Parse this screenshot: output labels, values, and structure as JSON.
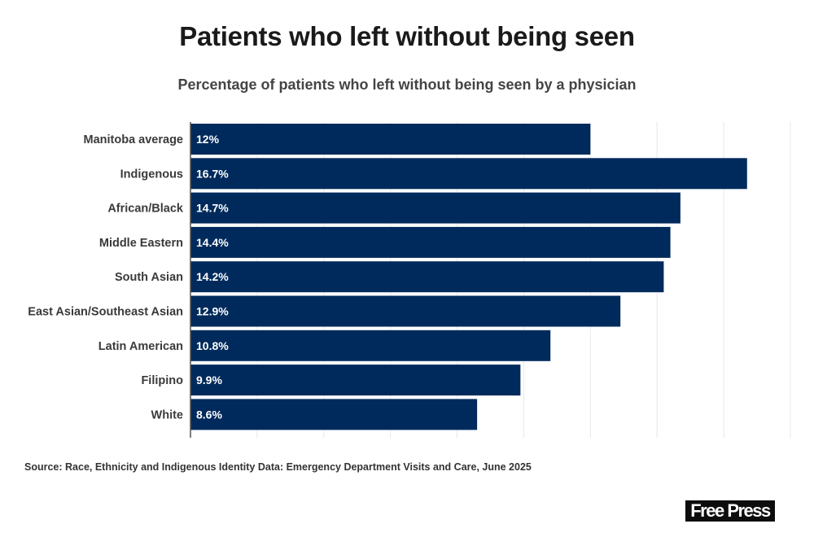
{
  "header": {
    "title": "Patients who left without being seen",
    "subtitle": "Percentage of patients who left without being seen by a physician"
  },
  "footer": {
    "source": "Source: Race, Ethnicity and Indigenous Identity Data: Emergency Department Visits and Care, June 2025",
    "logo_text": "Free Press"
  },
  "colors": {
    "bar": "#002a5c",
    "grid": "#e8e8ee",
    "axis": "#555555"
  },
  "chart_data": {
    "type": "bar",
    "orientation": "horizontal",
    "title": "Patients who left without being seen",
    "subtitle": "Percentage of patients who left without being seen by a physician",
    "xlabel": "",
    "ylabel": "",
    "xlim": [
      0,
      18
    ],
    "grid_step": 2,
    "grid": true,
    "legend": "none",
    "categories": [
      "Manitoba average",
      "Indigenous",
      "African/Black",
      "Middle Eastern",
      "South Asian",
      "East Asian/Southeast Asian",
      "Latin American",
      "Filipino",
      "White"
    ],
    "values": [
      12,
      16.7,
      14.7,
      14.4,
      14.2,
      12.9,
      10.8,
      9.9,
      8.6
    ],
    "data_labels": [
      "12%",
      "16.7%",
      "14.7%",
      "14.4%",
      "14.2%",
      "12.9%",
      "10.8%",
      "9.9%",
      "8.6%"
    ]
  }
}
